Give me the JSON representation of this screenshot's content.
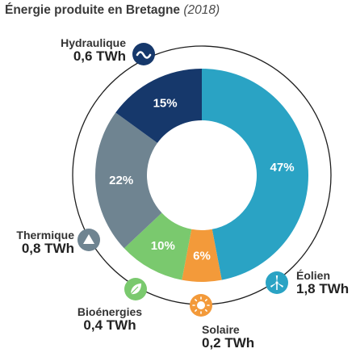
{
  "header": {
    "title": "Énergie produite en Bretagne",
    "year": "(2018)"
  },
  "chart_data": {
    "type": "pie",
    "categories": [
      "Éolien",
      "Solaire",
      "Bioénergies",
      "Thermique",
      "Hydraulique"
    ],
    "values": [
      47,
      6,
      10,
      22,
      15
    ],
    "value_labels": [
      "47%",
      "6%",
      "10%",
      "22%",
      "15%"
    ],
    "energy": [
      "1,8 TWh",
      "0,2 TWh",
      "0,4 TWh",
      "0,8 TWh",
      "0,6 TWh"
    ],
    "colors": [
      "#2aa3c4",
      "#f39a3a",
      "#7ac96e",
      "#6f8491",
      "#16386b"
    ],
    "icons": [
      "wind-turbine-icon",
      "sun-icon",
      "leaf-icon",
      "flame-icon",
      "water-wave-icon"
    ]
  }
}
